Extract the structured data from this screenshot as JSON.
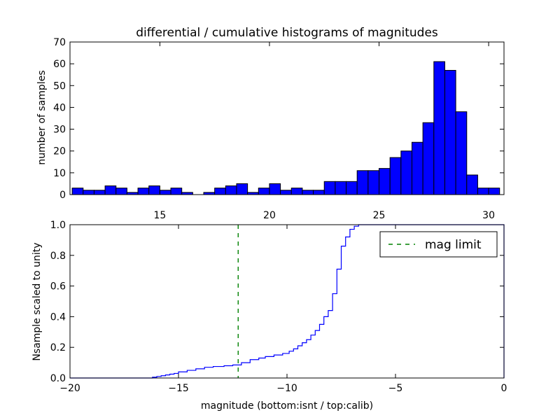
{
  "chart_data": [
    {
      "type": "bar",
      "title": "differential / cumulative histograms of magnitudes",
      "xlabel": "",
      "ylabel": "number of samples",
      "xlim": [
        10.9,
        30.7
      ],
      "ylim": [
        0,
        70
      ],
      "xticks": [
        "15",
        "20",
        "25",
        "30"
      ],
      "xtick_values": [
        15,
        20,
        25,
        30
      ],
      "yticks": [
        "0",
        "10",
        "20",
        "30",
        "40",
        "50",
        "60",
        "70"
      ],
      "ytick_values": [
        0,
        10,
        20,
        30,
        40,
        50,
        60,
        70
      ],
      "x_axis_position": "top",
      "bin_edges": [
        11.0,
        11.5,
        12.0,
        12.5,
        13.0,
        13.5,
        14.0,
        14.5,
        15.0,
        15.5,
        16.0,
        16.5,
        17.0,
        17.5,
        18.0,
        18.5,
        19.0,
        19.5,
        20.0,
        20.5,
        21.0,
        21.5,
        22.0,
        22.5,
        23.0,
        23.5,
        24.0,
        24.5,
        25.0,
        25.5,
        26.0,
        26.5,
        27.0,
        27.5,
        28.0,
        28.5,
        29.0,
        29.5,
        30.0,
        30.5
      ],
      "values": [
        3,
        2,
        2,
        4,
        3,
        1,
        3,
        4,
        2,
        3,
        1,
        0,
        1,
        3,
        4,
        5,
        1,
        3,
        5,
        2,
        3,
        2,
        2,
        6,
        6,
        6,
        11,
        11,
        12,
        17,
        20,
        24,
        33,
        61,
        57,
        38,
        9,
        3,
        3
      ],
      "color": "#0000ff",
      "edge_color": "#000000"
    },
    {
      "type": "line",
      "xlabel": "magnitude (bottom:isnt / top:calib)",
      "ylabel": "Nsample scaled to unity",
      "xlim": [
        -20,
        0
      ],
      "ylim": [
        0,
        1
      ],
      "xticks": [
        "−20",
        "−15",
        "−10",
        "−5",
        "0"
      ],
      "xtick_values": [
        -20,
        -15,
        -10,
        -5,
        0
      ],
      "yticks": [
        "0.0",
        "0.2",
        "0.4",
        "0.6",
        "0.8",
        "1.0"
      ],
      "ytick_values": [
        0,
        0.2,
        0.4,
        0.6,
        0.8,
        1.0
      ],
      "step": true,
      "x": [
        -20,
        -16.2,
        -16.0,
        -15.8,
        -15.6,
        -15.4,
        -15.2,
        -15.0,
        -14.6,
        -14.2,
        -13.8,
        -13.4,
        -12.9,
        -12.5,
        -12.1,
        -11.7,
        -11.3,
        -11.0,
        -10.6,
        -10.2,
        -9.9,
        -9.7,
        -9.5,
        -9.3,
        -9.1,
        -8.9,
        -8.7,
        -8.5,
        -8.3,
        -8.1,
        -7.9,
        -7.7,
        -7.5,
        -7.3,
        -7.1,
        -6.9,
        -6.7,
        -6.5,
        -6.3,
        -6.1,
        0
      ],
      "y": [
        0.0,
        0.005,
        0.01,
        0.015,
        0.02,
        0.025,
        0.03,
        0.04,
        0.05,
        0.06,
        0.07,
        0.075,
        0.08,
        0.085,
        0.1,
        0.12,
        0.13,
        0.14,
        0.15,
        0.16,
        0.175,
        0.19,
        0.21,
        0.23,
        0.25,
        0.28,
        0.31,
        0.35,
        0.4,
        0.44,
        0.55,
        0.71,
        0.86,
        0.92,
        0.97,
        0.99,
        1.0,
        1.0,
        1.0,
        1.0,
        1.0
      ],
      "line_color": "#0000ff",
      "mag_limit": -12.25,
      "mag_limit_color": "#008000",
      "legend": [
        {
          "label": "mag limit",
          "style": "dashed",
          "color": "#008000"
        }
      ],
      "legend_position": "top-right"
    }
  ]
}
